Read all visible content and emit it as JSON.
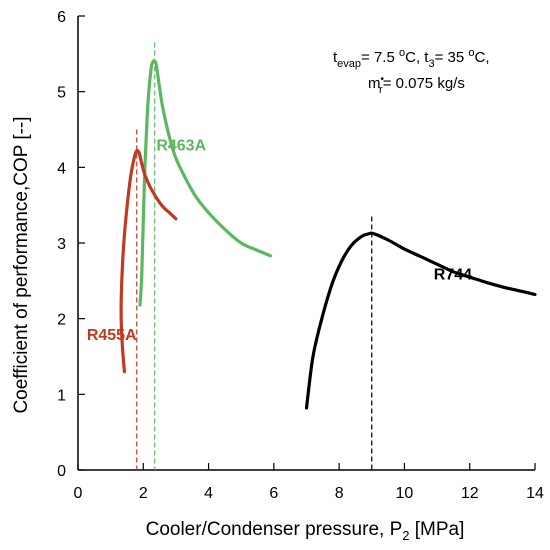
{
  "chart_data": {
    "type": "line",
    "title": "",
    "xlabel": {
      "text": "Cooler/Condenser pressure, P",
      "sub": "2",
      "unit": " [MPa]"
    },
    "ylabel": "Coefficient of performance,COP [--]",
    "xlim": [
      0,
      14
    ],
    "ylim": [
      0,
      6
    ],
    "xticks": [
      0,
      2,
      4,
      6,
      8,
      10,
      12,
      14
    ],
    "yticks": [
      0,
      1,
      2,
      3,
      4,
      5,
      6
    ],
    "grid": false,
    "annotation": {
      "line1": {
        "t_evap_pre": "t",
        "t_evap_sub": "evap",
        "t_evap_val": "= 7.5 ",
        "deg1": "o",
        "c1": "C, t",
        "t3_sub": "3",
        "t3_val": "= 35 ",
        "deg2": "o",
        "c2": "C,"
      },
      "line2": {
        "m": "m",
        "m_sup": "•",
        "m_sub": "r",
        "m_val": "= 0.075 kg/s"
      }
    },
    "series": [
      {
        "name": "R463A",
        "color": "#5cb85f",
        "label_pos": [
          2.4,
          4.3
        ],
        "peak_x": 2.35,
        "x": [
          1.9,
          1.95,
          2.0,
          2.05,
          2.1,
          2.15,
          2.2,
          2.25,
          2.3,
          2.35,
          2.4,
          2.5,
          2.6,
          2.8,
          3.0,
          3.3,
          3.6,
          4.0,
          4.5,
          5.0,
          5.4,
          5.9
        ],
        "y": [
          2.18,
          2.55,
          3.3,
          4.0,
          4.5,
          4.9,
          5.15,
          5.33,
          5.4,
          5.4,
          5.35,
          5.05,
          4.78,
          4.4,
          4.12,
          3.85,
          3.62,
          3.4,
          3.18,
          3.0,
          2.92,
          2.83
        ]
      },
      {
        "name": "R455A",
        "color": "#c03a22",
        "label_pos": [
          0.27,
          1.8
        ],
        "peak_x": 1.8,
        "x": [
          1.42,
          1.35,
          1.32,
          1.35,
          1.42,
          1.52,
          1.62,
          1.72,
          1.8,
          1.88,
          1.95,
          2.05,
          2.2,
          2.4,
          2.6,
          2.8,
          3.0
        ],
        "y": [
          1.3,
          1.7,
          2.1,
          2.6,
          3.1,
          3.55,
          3.9,
          4.12,
          4.22,
          4.18,
          4.05,
          3.9,
          3.75,
          3.6,
          3.48,
          3.4,
          3.32
        ]
      },
      {
        "name": "R744",
        "color": "#000000",
        "label_pos": [
          10.9,
          2.6
        ],
        "peak_x": 9.0,
        "x": [
          7.0,
          7.2,
          7.5,
          7.8,
          8.1,
          8.4,
          8.7,
          8.9,
          9.0,
          9.2,
          9.5,
          10.0,
          10.5,
          11.0,
          11.5,
          12.0,
          12.5,
          13.0,
          13.5,
          14.0
        ],
        "y": [
          0.82,
          1.5,
          2.05,
          2.48,
          2.78,
          2.98,
          3.09,
          3.12,
          3.13,
          3.1,
          3.04,
          2.92,
          2.82,
          2.72,
          2.62,
          2.55,
          2.48,
          2.42,
          2.37,
          2.32
        ]
      }
    ]
  }
}
